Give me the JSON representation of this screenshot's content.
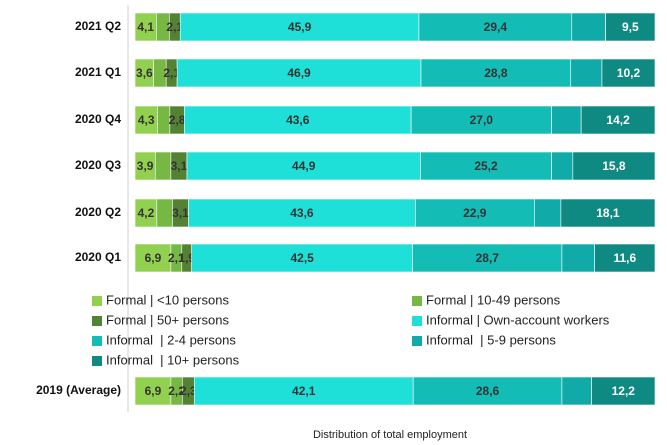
{
  "chart_data": {
    "type": "stacked-bar-horizontal",
    "x_label": "Distribution of total employment",
    "categories": [
      "2021 Q2",
      "2021 Q1",
      "2020 Q4",
      "2020 Q3",
      "2020 Q2",
      "2020 Q1",
      "2019 (Average)"
    ],
    "xlim": [
      0,
      100
    ],
    "series": [
      {
        "name": "Formal | <10 persons",
        "color": "#92d050",
        "values": [
          4.1,
          3.6,
          4.3,
          3.9,
          4.2,
          6.9,
          6.9
        ],
        "value_labels": [
          "4,1",
          "3,6",
          "4,3",
          "3,9",
          "4,2",
          "6,9",
          "6,9"
        ]
      },
      {
        "name": "Formal | 10-49 persons",
        "color": "#76b843",
        "values": [
          2.5,
          2.4,
          2.4,
          3.0,
          3.0,
          2.1,
          2.2
        ],
        "value_labels": [
          null,
          null,
          null,
          null,
          null,
          "2,1",
          "2,2"
        ]
      },
      {
        "name": "Formal | 50+ persons",
        "color": "#548235",
        "values": [
          2.1,
          2.1,
          2.8,
          3.1,
          3.1,
          1.9,
          2.3
        ],
        "value_labels": [
          "2,1",
          "2,1",
          "2,8",
          "3,1",
          "3,1",
          "1,9",
          "2,3"
        ]
      },
      {
        "name": "Informal | Own-account workers",
        "color": "#1ee0d8",
        "values": [
          45.9,
          46.9,
          43.6,
          44.9,
          43.6,
          42.5,
          42.1
        ],
        "value_labels": [
          "45,9",
          "46,9",
          "43,6",
          "44,9",
          "43,6",
          "42,5",
          "42,1"
        ]
      },
      {
        "name": "Informal  | 2-4 persons",
        "color": "#14bcb6",
        "values": [
          29.4,
          28.8,
          27.0,
          25.2,
          22.9,
          28.7,
          28.6
        ],
        "value_labels": [
          "29,4",
          "28,8",
          "27,0",
          "25,2",
          "22,9",
          "28,7",
          "28,6"
        ]
      },
      {
        "name": "Informal  | 5-9 persons",
        "color": "#10aaa8",
        "values": [
          6.5,
          6.0,
          5.7,
          4.1,
          5.1,
          6.3,
          5.7
        ],
        "value_labels": [
          null,
          null,
          null,
          null,
          null,
          null,
          null
        ]
      },
      {
        "name": "Informal  | 10+ persons",
        "color": "#0e8a82",
        "values": [
          9.5,
          10.2,
          14.2,
          15.8,
          18.1,
          11.6,
          12.2
        ],
        "value_labels": [
          "9,5",
          "10,2",
          "14,2",
          "15,8",
          "18,1",
          "11,6",
          "12,2"
        ]
      }
    ]
  }
}
